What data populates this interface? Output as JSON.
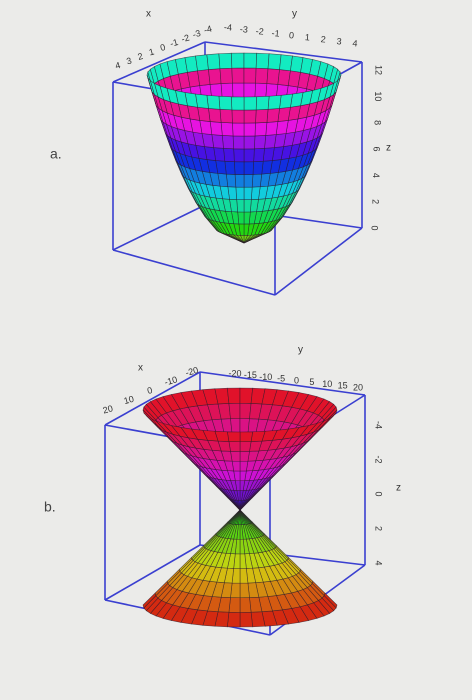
{
  "figures": [
    {
      "label": "a.",
      "x_axis": {
        "label": "x",
        "ticks": [
          4,
          3,
          2,
          1,
          0,
          -1,
          -2,
          -3,
          -4
        ]
      },
      "y_axis": {
        "label": "y",
        "ticks": [
          -4,
          -3,
          -2,
          -1,
          0,
          1,
          2,
          3,
          4
        ]
      },
      "z_axis": {
        "label": "z",
        "ticks": [
          0,
          2,
          4,
          6,
          8,
          10,
          12
        ]
      }
    },
    {
      "label": "b.",
      "x_axis": {
        "label": "x",
        "ticks": [
          20,
          10,
          0,
          -10,
          -20
        ]
      },
      "y_axis": {
        "label": "y",
        "ticks": [
          -20,
          -15,
          -10,
          -5,
          0,
          5,
          10,
          15,
          20
        ]
      },
      "z_axis": {
        "label": "z",
        "ticks": [
          -4,
          -2,
          0,
          2,
          4
        ]
      }
    }
  ]
}
